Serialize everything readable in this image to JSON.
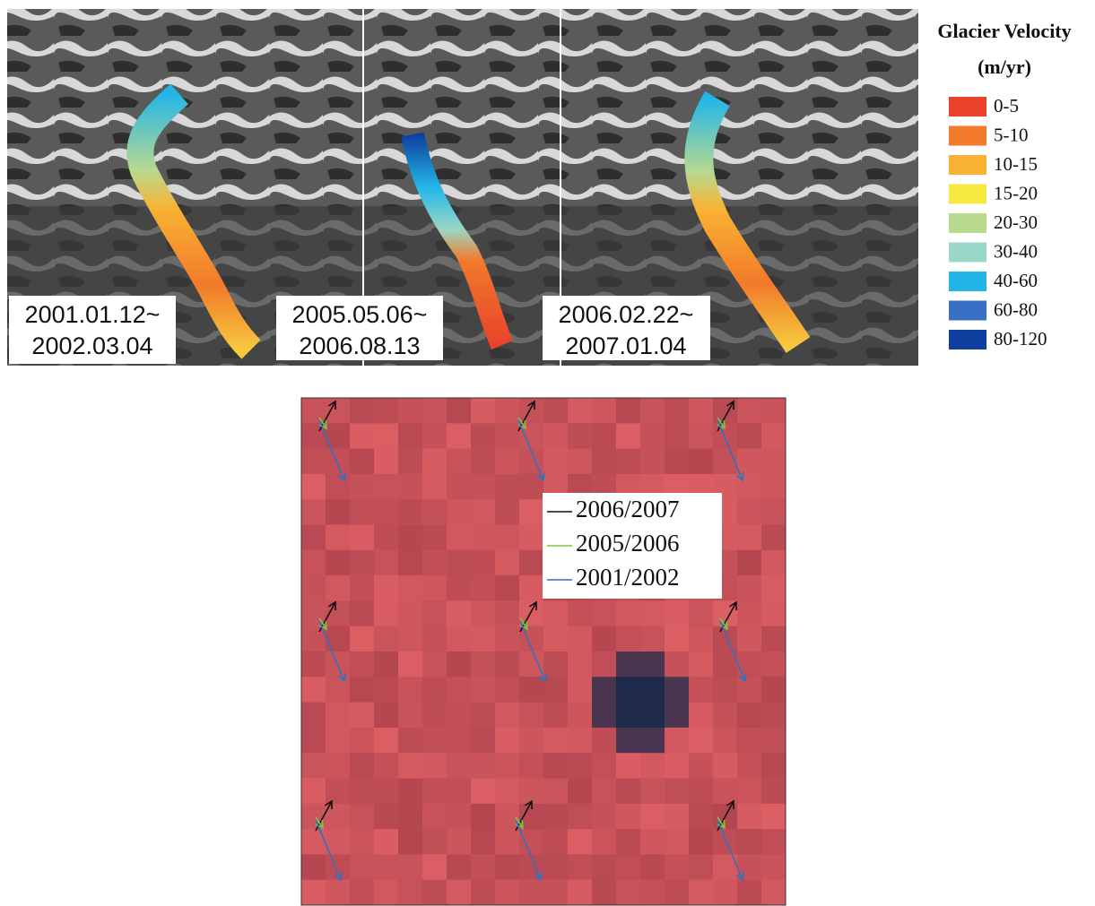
{
  "panels": [
    {
      "date_range": [
        "2001.01.12~",
        "2002.03.04"
      ]
    },
    {
      "date_range": [
        "2005.05.06~",
        "2006.08.13"
      ]
    },
    {
      "date_range": [
        "2006.02.22~",
        "2007.01.04"
      ]
    }
  ],
  "legend": {
    "title": "Glacier Velocity",
    "unit": "(m/yr)",
    "items": [
      {
        "label": "0-5",
        "color": "#e8432a"
      },
      {
        "label": "5-10",
        "color": "#f27a2a"
      },
      {
        "label": "10-15",
        "color": "#f9b233"
      },
      {
        "label": "15-20",
        "color": "#f6e83e"
      },
      {
        "label": "20-30",
        "color": "#b9d98f"
      },
      {
        "label": "30-40",
        "color": "#9ad7c6"
      },
      {
        "label": "40-60",
        "color": "#22b6e8"
      },
      {
        "label": "60-80",
        "color": "#3a6fc6"
      },
      {
        "label": "80-120",
        "color": "#0f3f9e"
      }
    ]
  },
  "vector_legend": {
    "items": [
      {
        "label": "2006/2007",
        "color": "#111111"
      },
      {
        "label": "2005/2006",
        "color": "#7cc242"
      },
      {
        "label": "2001/2002",
        "color": "#2f72c0"
      }
    ]
  }
}
